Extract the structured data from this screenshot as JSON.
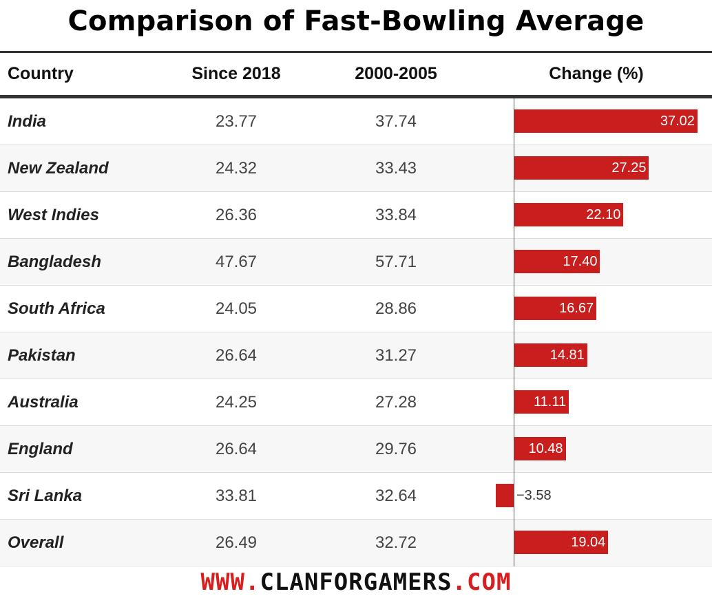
{
  "title": "Comparison of Fast-Bowling Average",
  "footer": {
    "prefix": "WWW.",
    "name": "CLANFORGAMERS",
    "suffix": ".COM"
  },
  "chart_data": {
    "type": "table",
    "columns": [
      "Country",
      "Since 2018",
      "2000-2005",
      "Change (%)"
    ],
    "rows": [
      {
        "country": "India",
        "since_2018": "23.77",
        "y2000_2005": "37.74",
        "change": 37.02,
        "change_label": "37.02"
      },
      {
        "country": "New Zealand",
        "since_2018": "24.32",
        "y2000_2005": "33.43",
        "change": 27.25,
        "change_label": "27.25"
      },
      {
        "country": "West Indies",
        "since_2018": "26.36",
        "y2000_2005": "33.84",
        "change": 22.1,
        "change_label": "22.10"
      },
      {
        "country": "Bangladesh",
        "since_2018": "47.67",
        "y2000_2005": "57.71",
        "change": 17.4,
        "change_label": "17.40"
      },
      {
        "country": "South Africa",
        "since_2018": "24.05",
        "y2000_2005": "28.86",
        "change": 16.67,
        "change_label": "16.67"
      },
      {
        "country": "Pakistan",
        "since_2018": "26.64",
        "y2000_2005": "31.27",
        "change": 14.81,
        "change_label": "14.81"
      },
      {
        "country": "Australia",
        "since_2018": "24.25",
        "y2000_2005": "27.28",
        "change": 11.11,
        "change_label": "11.11"
      },
      {
        "country": "England",
        "since_2018": "26.64",
        "y2000_2005": "29.76",
        "change": 10.48,
        "change_label": "10.48"
      },
      {
        "country": "Sri Lanka",
        "since_2018": "33.81",
        "y2000_2005": "32.64",
        "change": -3.58,
        "change_label": "−3.58"
      },
      {
        "country": "Overall",
        "since_2018": "26.49",
        "y2000_2005": "32.72",
        "change": 19.04,
        "change_label": "19.04"
      }
    ],
    "bar_color": "#c81e1e"
  }
}
